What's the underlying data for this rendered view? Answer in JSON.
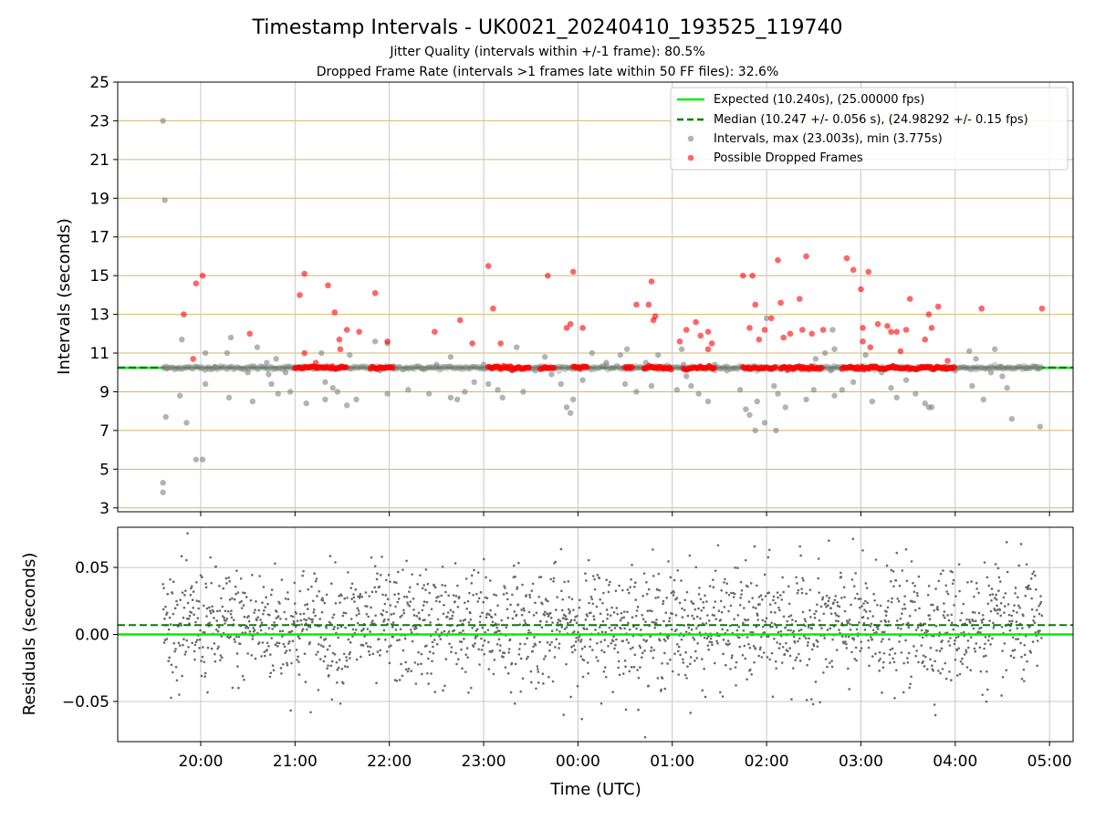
{
  "figure": {
    "title": "Timestamp Intervals - UK0021_20240410_193525_119740",
    "subtitle1": "Jitter Quality (intervals within +/-1 frame): 80.5%",
    "subtitle2": "Dropped Frame Rate (intervals >1 frames late within 50 FF files): 32.6%",
    "xlabel": "Time (UTC)"
  },
  "colors": {
    "expected": "#00ee00",
    "median": "#008000",
    "intervals": "#808080",
    "dropped": "#ff0000",
    "hgrid_top": "#d2b96a",
    "grid": "#c8c8c8",
    "residual_dots": "#696969"
  },
  "chart_data": [
    {
      "type": "scatter",
      "ylabel": "Intervals (seconds)",
      "ylim": [
        2.8,
        25
      ],
      "yticks": [
        "3",
        "5",
        "7",
        "9",
        "11",
        "13",
        "15",
        "17",
        "19",
        "21",
        "23",
        "25"
      ],
      "xlim_hours": [
        19.12,
        29.25
      ],
      "grid": true,
      "legend_position": "top-right",
      "legend": [
        {
          "label": "Expected (10.240s), (25.00000 fps)",
          "style": "solid-line"
        },
        {
          "label": "Median (10.247 +/- 0.056 s), (24.98292 +/- 0.15 fps)",
          "style": "dashed-line"
        },
        {
          "label": "Intervals, max (23.003s), min (3.775s)",
          "style": "gray-dot"
        },
        {
          "label": "Possible Dropped Frames",
          "style": "red-dot"
        }
      ],
      "expected_interval": 10.24,
      "median_interval": 10.247,
      "series": [
        {
          "name": "Intervals, max (23.003s), min (3.775s)",
          "points": [
            [
              19.6,
              23.0
            ],
            [
              19.62,
              18.9
            ],
            [
              19.6,
              4.3
            ],
            [
              19.6,
              3.8
            ],
            [
              19.63,
              7.7
            ],
            [
              19.64,
              10.2
            ],
            [
              19.78,
              8.8
            ],
            [
              19.8,
              11.7
            ],
            [
              19.85,
              7.4
            ],
            [
              19.95,
              5.5
            ],
            [
              20.02,
              5.5
            ],
            [
              20.05,
              11.0
            ],
            [
              20.05,
              9.4
            ],
            [
              20.15,
              10.3
            ],
            [
              20.28,
              11.0
            ],
            [
              20.3,
              8.7
            ],
            [
              20.32,
              11.8
            ],
            [
              20.5,
              10.0
            ],
            [
              20.55,
              8.5
            ],
            [
              20.6,
              11.3
            ],
            [
              20.7,
              10.5
            ],
            [
              20.72,
              9.9
            ],
            [
              20.75,
              9.4
            ],
            [
              20.8,
              10.7
            ],
            [
              20.82,
              8.9
            ],
            [
              20.9,
              10.0
            ],
            [
              20.95,
              9.0
            ],
            [
              21.12,
              8.4
            ],
            [
              21.28,
              11.0
            ],
            [
              21.32,
              9.5
            ],
            [
              21.32,
              8.6
            ],
            [
              21.4,
              9.2
            ],
            [
              21.45,
              9.0
            ],
            [
              21.55,
              8.3
            ],
            [
              21.58,
              10.9
            ],
            [
              21.65,
              8.6
            ],
            [
              21.85,
              11.6
            ],
            [
              21.9,
              10.1
            ],
            [
              21.98,
              11.5
            ],
            [
              21.98,
              8.9
            ],
            [
              22.05,
              10.3
            ],
            [
              22.2,
              9.1
            ],
            [
              22.35,
              10.2
            ],
            [
              22.42,
              8.9
            ],
            [
              22.5,
              10.4
            ],
            [
              22.65,
              10.8
            ],
            [
              22.65,
              8.7
            ],
            [
              22.72,
              8.6
            ],
            [
              22.8,
              9.0
            ],
            [
              22.9,
              9.5
            ],
            [
              23.0,
              10.4
            ],
            [
              23.05,
              9.4
            ],
            [
              23.15,
              9.1
            ],
            [
              23.2,
              8.7
            ],
            [
              23.3,
              10.1
            ],
            [
              23.35,
              11.3
            ],
            [
              23.42,
              9.0
            ],
            [
              23.55,
              10.1
            ],
            [
              23.65,
              10.8
            ],
            [
              23.72,
              9.9
            ],
            [
              23.82,
              9.4
            ],
            [
              23.88,
              8.2
            ],
            [
              23.92,
              7.9
            ],
            [
              23.95,
              8.6
            ],
            [
              24.05,
              9.6
            ],
            [
              24.15,
              11.0
            ],
            [
              24.3,
              10.5
            ],
            [
              24.45,
              10.9
            ],
            [
              24.5,
              9.4
            ],
            [
              24.52,
              11.2
            ],
            [
              24.62,
              9.0
            ],
            [
              24.72,
              10.5
            ],
            [
              24.78,
              9.3
            ],
            [
              24.85,
              10.9
            ],
            [
              25.05,
              9.1
            ],
            [
              25.1,
              11.2
            ],
            [
              25.12,
              10.4
            ],
            [
              25.15,
              9.8
            ],
            [
              25.2,
              9.3
            ],
            [
              25.28,
              8.9
            ],
            [
              25.38,
              8.5
            ],
            [
              25.45,
              10.4
            ],
            [
              25.58,
              10.1
            ],
            [
              25.72,
              9.1
            ],
            [
              25.78,
              8.1
            ],
            [
              25.82,
              7.8
            ],
            [
              25.88,
              7.0
            ],
            [
              25.9,
              8.5
            ],
            [
              25.98,
              7.4
            ],
            [
              26.0,
              12.8
            ],
            [
              26.08,
              9.3
            ],
            [
              26.1,
              7.0
            ],
            [
              26.12,
              8.9
            ],
            [
              26.2,
              8.2
            ],
            [
              26.3,
              10.2
            ],
            [
              26.42,
              8.6
            ],
            [
              26.5,
              9.1
            ],
            [
              26.52,
              10.7
            ],
            [
              26.62,
              11.0
            ],
            [
              26.68,
              10.1
            ],
            [
              26.7,
              12.2
            ],
            [
              26.72,
              11.2
            ],
            [
              26.72,
              8.8
            ],
            [
              26.8,
              9.1
            ],
            [
              26.88,
              10.3
            ],
            [
              26.92,
              9.5
            ],
            [
              27.05,
              10.9
            ],
            [
              27.12,
              8.5
            ],
            [
              27.22,
              10.0
            ],
            [
              27.32,
              9.2
            ],
            [
              27.38,
              8.7
            ],
            [
              27.48,
              9.6
            ],
            [
              27.58,
              8.9
            ],
            [
              27.68,
              8.4
            ],
            [
              27.72,
              8.2
            ],
            [
              27.75,
              8.2
            ],
            [
              27.9,
              10.3
            ],
            [
              28.0,
              10.1
            ],
            [
              28.15,
              11.1
            ],
            [
              28.18,
              9.3
            ],
            [
              28.22,
              10.7
            ],
            [
              28.3,
              8.6
            ],
            [
              28.38,
              10.0
            ],
            [
              28.42,
              11.2
            ],
            [
              28.48,
              10.3
            ],
            [
              28.5,
              9.8
            ],
            [
              28.55,
              9.2
            ],
            [
              28.6,
              7.6
            ],
            [
              28.75,
              10.2
            ],
            [
              28.85,
              10.3
            ],
            [
              28.9,
              7.2
            ],
            [
              28.88,
              10.2
            ]
          ]
        },
        {
          "name": "Possible Dropped Frames",
          "points": [
            [
              19.82,
              13.0
            ],
            [
              19.95,
              14.6
            ],
            [
              20.02,
              15.0
            ],
            [
              19.92,
              10.7
            ],
            [
              20.52,
              12.0
            ],
            [
              21.05,
              14.0
            ],
            [
              21.1,
              15.1
            ],
            [
              21.1,
              11.0
            ],
            [
              21.22,
              10.5
            ],
            [
              21.35,
              14.5
            ],
            [
              21.42,
              13.1
            ],
            [
              21.47,
              11.7
            ],
            [
              21.48,
              11.2
            ],
            [
              21.55,
              12.2
            ],
            [
              21.68,
              12.1
            ],
            [
              21.85,
              14.1
            ],
            [
              21.98,
              11.6
            ],
            [
              22.48,
              12.1
            ],
            [
              22.75,
              12.7
            ],
            [
              22.88,
              11.5
            ],
            [
              23.05,
              15.5
            ],
            [
              23.1,
              13.3
            ],
            [
              23.18,
              11.5
            ],
            [
              23.68,
              15.0
            ],
            [
              23.88,
              12.3
            ],
            [
              23.92,
              12.5
            ],
            [
              23.95,
              15.2
            ],
            [
              24.05,
              12.3
            ],
            [
              24.62,
              13.5
            ],
            [
              24.75,
              13.5
            ],
            [
              24.78,
              14.7
            ],
            [
              24.82,
              12.9
            ],
            [
              24.8,
              12.7
            ],
            [
              25.08,
              11.6
            ],
            [
              25.15,
              12.2
            ],
            [
              25.25,
              12.6
            ],
            [
              25.3,
              11.9
            ],
            [
              25.38,
              12.1
            ],
            [
              25.42,
              11.5
            ],
            [
              25.38,
              11.2
            ],
            [
              25.75,
              15.0
            ],
            [
              25.82,
              12.3
            ],
            [
              25.85,
              15.0
            ],
            [
              25.88,
              13.5
            ],
            [
              25.92,
              11.7
            ],
            [
              25.98,
              12.2
            ],
            [
              26.05,
              12.8
            ],
            [
              26.12,
              15.8
            ],
            [
              26.15,
              13.6
            ],
            [
              26.18,
              11.8
            ],
            [
              26.25,
              12.0
            ],
            [
              26.35,
              13.8
            ],
            [
              26.38,
              12.2
            ],
            [
              26.42,
              16.0
            ],
            [
              26.48,
              12.0
            ],
            [
              26.6,
              12.2
            ],
            [
              26.85,
              15.9
            ],
            [
              26.92,
              15.3
            ],
            [
              27.0,
              14.3
            ],
            [
              27.08,
              15.2
            ],
            [
              27.02,
              12.3
            ],
            [
              27.02,
              11.6
            ],
            [
              27.1,
              11.3
            ],
            [
              27.18,
              12.5
            ],
            [
              27.28,
              12.4
            ],
            [
              27.32,
              12.1
            ],
            [
              27.38,
              12.1
            ],
            [
              27.42,
              11.1
            ],
            [
              27.48,
              12.2
            ],
            [
              27.52,
              13.8
            ],
            [
              27.68,
              11.7
            ],
            [
              27.72,
              13.0
            ],
            [
              27.75,
              12.3
            ],
            [
              27.82,
              13.4
            ],
            [
              27.92,
              10.6
            ],
            [
              28.28,
              13.3
            ],
            [
              28.92,
              13.3
            ]
          ]
        }
      ]
    },
    {
      "type": "scatter",
      "ylabel": "Residuals (seconds)",
      "ylim": [
        -0.08,
        0.08
      ],
      "yticks": [
        {
          "value": 0.05,
          "label": "0.05"
        },
        {
          "value": 0.0,
          "label": "0.00"
        },
        {
          "value": -0.05,
          "label": "−0.05"
        }
      ],
      "xticks": [
        {
          "hour": 20,
          "label": "20:00"
        },
        {
          "hour": 21,
          "label": "21:00"
        },
        {
          "hour": 22,
          "label": "22:00"
        },
        {
          "hour": 23,
          "label": "23:00"
        },
        {
          "hour": 24,
          "label": "00:00"
        },
        {
          "hour": 25,
          "label": "01:00"
        },
        {
          "hour": 26,
          "label": "02:00"
        },
        {
          "hour": 27,
          "label": "03:00"
        },
        {
          "hour": 28,
          "label": "04:00"
        },
        {
          "hour": 29,
          "label": "05:00"
        }
      ],
      "grid": true,
      "expected_line": 0.0,
      "median_line": 0.007,
      "residual_range_hours": [
        19.6,
        28.92
      ],
      "residual_spread_sd": 0.022
    }
  ]
}
